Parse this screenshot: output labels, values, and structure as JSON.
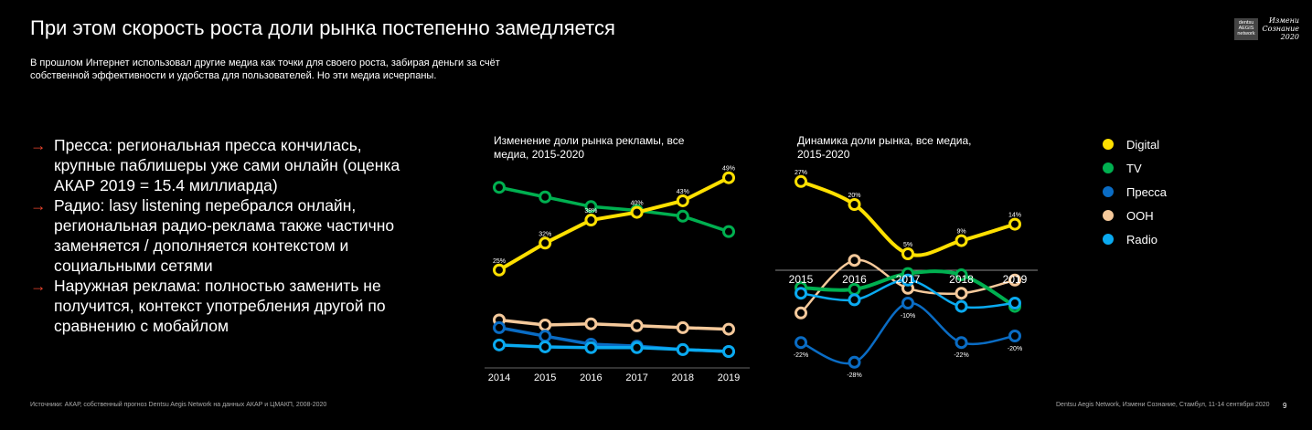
{
  "title": "При этом скорость роста доли рынка постепенно замедляется",
  "subtitle": "В прошлом Интернет использовал другие медиа как точки для своего роста, забирая деньги за счёт собственной эффективности и удобства для пользователей. Но эти медиа исчерпаны.",
  "bullets": [
    "Пресса: региональная пресса кончилась, крупные паблишеры уже сами онлайн (оценка АКАР 2019 = 15.4 миллиарда)",
    "Радио: lasy listening перебрался онлайн, региональная радио-реклама также частично заменяется / дополняется контекстом и социальными сетями",
    "Наружная реклама: полностью заменить не получится, контекст употребления другой по сравнению с мобайлом"
  ],
  "arrow": "→",
  "logos": {
    "brand": "dentsu AEGIS network",
    "event": "Измени Сознание 2020"
  },
  "legend": [
    {
      "name": "Digital",
      "color": "#ffe000"
    },
    {
      "name": "TV",
      "color": "#00b050"
    },
    {
      "name": "Пресса",
      "color": "#0a6cc4"
    },
    {
      "name": "OOH",
      "color": "#f5c99b"
    },
    {
      "name": "Radio",
      "color": "#0aaaf0"
    }
  ],
  "chart_data": [
    {
      "type": "line",
      "title": "Изменение доли рынка рекламы, все медиа, 2015-2020",
      "categories": [
        "2014",
        "2015",
        "2016",
        "2017",
        "2018",
        "2019"
      ],
      "ylim": [
        0,
        50
      ],
      "series": [
        {
          "name": "Digital",
          "values": [
            25,
            32,
            38,
            40,
            43,
            49
          ],
          "labels": [
            "25%",
            "32%",
            "38%",
            "40%",
            "43%",
            "49%"
          ]
        },
        {
          "name": "TV",
          "values": [
            46.5,
            44,
            41.5,
            40.5,
            39,
            35
          ]
        },
        {
          "name": "Пресса",
          "values": [
            10,
            7.8,
            5.7,
            5.2,
            4.3,
            3.8
          ]
        },
        {
          "name": "OOH",
          "values": [
            12,
            10.7,
            11,
            10.5,
            10,
            9.6
          ]
        },
        {
          "name": "Radio",
          "values": [
            5.5,
            5,
            4.8,
            4.8,
            4.3,
            3.8
          ]
        }
      ]
    },
    {
      "type": "line",
      "title": "Динамика доли рынка, все медиа, 2015-2020",
      "categories": [
        "2015",
        "2016",
        "2017",
        "2018",
        "2019"
      ],
      "ylim": [
        -30,
        30
      ],
      "series": [
        {
          "name": "Digital",
          "values": [
            27,
            20,
            5,
            9,
            14
          ],
          "labels": [
            "27%",
            "20%",
            "5%",
            "9%",
            "14%"
          ]
        },
        {
          "name": "TV",
          "values": [
            -5.3,
            -5.8,
            -1,
            -1.4,
            -11
          ]
        },
        {
          "name": "Пресса",
          "values": [
            -22,
            -28,
            -10,
            -22,
            -20
          ],
          "labels": [
            "-22%",
            "-28%",
            "-10%",
            "-22%",
            "-20%"
          ]
        },
        {
          "name": "OOH",
          "values": [
            -13,
            3,
            -5.5,
            -7,
            -3
          ]
        },
        {
          "name": "Radio",
          "values": [
            -7,
            -9,
            -3,
            -11,
            -10
          ]
        }
      ]
    }
  ],
  "footer": {
    "source": "Источники: АКАР, собственный прогноз Dentsu Aegis Network на данных АКАР и ЦМАКП, 2008-2020",
    "event": "Dentsu Aegis Network, Измени Сознание, Стамбул, 11-14 сентября 2020",
    "page": "9"
  }
}
